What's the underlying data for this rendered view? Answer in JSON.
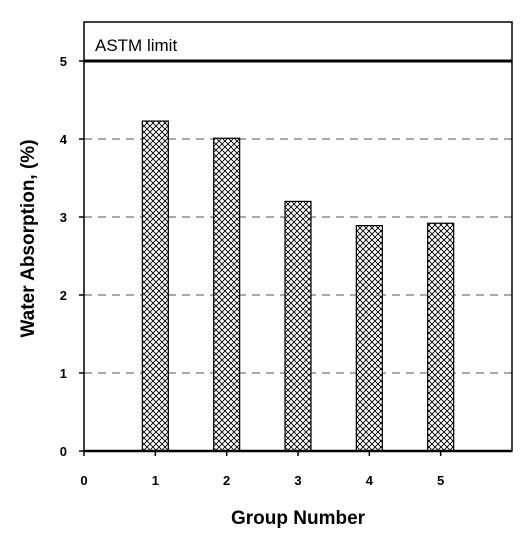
{
  "chart_data": {
    "type": "bar",
    "x": [
      1,
      2,
      3,
      4,
      5
    ],
    "values": [
      4.23,
      4.01,
      3.2,
      2.89,
      2.92
    ],
    "xlabel": "Group Number",
    "ylabel": "Water Absorption, (%)",
    "xlim": [
      0,
      6
    ],
    "ylim": [
      0,
      5.5
    ],
    "xticks": [
      "0",
      "1",
      "2",
      "3",
      "4",
      "5"
    ],
    "yticks": [
      "0",
      "1",
      "2",
      "3",
      "4",
      "5"
    ],
    "reference_line": {
      "value": 5,
      "label": "ASTM limit"
    },
    "grid": "dashed horizontal at 1, 2, 3, 4",
    "bar_fill": "crosshatch"
  }
}
